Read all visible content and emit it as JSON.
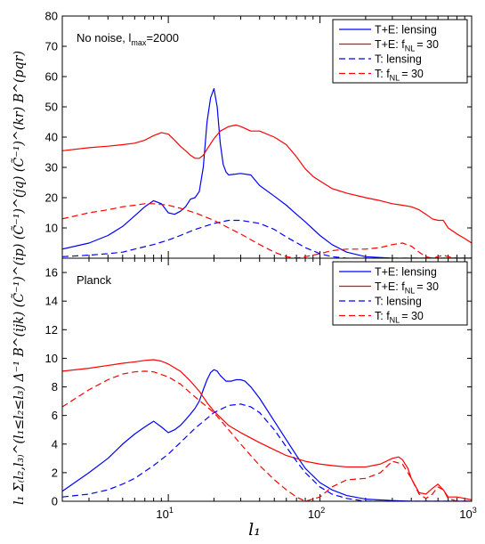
{
  "figure": {
    "ylabel": "l₁ Σ₍l₂,l₃₎^(l₁≤l₂≤l₃) Δ⁻¹ B^(ijk) (C̃⁻¹)^(ip) (C̃⁻¹)^(jq) (C̃⁻¹)^(kr) B^(pqr)",
    "xlabel": "l₁",
    "x_tick_base": "10",
    "x_tick_exps": [
      "1",
      "2",
      "3"
    ]
  },
  "chart_data": [
    {
      "type": "line",
      "annotation_main": "No noise, l",
      "annotation_sub": "max",
      "annotation_rest": "=2000",
      "xscale": "log",
      "xlim": [
        2,
        1000
      ],
      "ylim": [
        0,
        80
      ],
      "yticks": [
        0,
        10,
        20,
        30,
        40,
        50,
        60,
        70,
        80
      ],
      "grid": false,
      "legend_position": "top-right",
      "series": [
        {
          "name": "T+E: lensing",
          "name_sub": "",
          "name_after": "",
          "color": "#0000ff",
          "dash": "solid",
          "x": [
            2,
            3,
            4,
            5,
            6,
            7,
            8,
            9,
            10,
            11,
            12,
            13,
            14,
            15,
            16,
            17,
            18,
            19,
            20,
            21,
            22,
            23,
            24,
            25,
            30,
            35,
            40,
            50,
            60,
            70,
            80,
            100,
            120,
            150,
            200,
            300,
            1000
          ],
          "y": [
            3,
            5,
            7.5,
            10.5,
            14,
            17,
            19,
            18,
            15,
            14.5,
            15.5,
            17,
            19.5,
            20,
            22,
            30,
            45,
            53,
            56,
            50,
            38,
            31,
            28.5,
            27.5,
            28,
            27.5,
            24,
            20.5,
            17.5,
            14.5,
            12,
            7.5,
            4.5,
            2,
            0.5,
            0,
            0
          ]
        },
        {
          "name": "T+E: f",
          "name_sub": "NL",
          "name_after": "= 30",
          "color": "#ff0000",
          "dash": "solid",
          "x": [
            2,
            3,
            4,
            5,
            6,
            7,
            8,
            9,
            10,
            11,
            12,
            13,
            14,
            15,
            16,
            17,
            18,
            20,
            22,
            25,
            28,
            30,
            35,
            40,
            50,
            60,
            70,
            80,
            90,
            100,
            120,
            150,
            200,
            250,
            300,
            350,
            400,
            450,
            500,
            550,
            600,
            650,
            700,
            800,
            900,
            1000
          ],
          "y": [
            35.5,
            36.5,
            37,
            37.5,
            38,
            39,
            40.5,
            41.5,
            41,
            39,
            37,
            35.5,
            34,
            33,
            33,
            34,
            36,
            39.5,
            42,
            43.5,
            44,
            43.5,
            42,
            42,
            40,
            37.5,
            33.5,
            29.5,
            27,
            25.5,
            23,
            21.5,
            20,
            19,
            18,
            17.5,
            17,
            16,
            14.5,
            13,
            12.5,
            12.5,
            10,
            8,
            6.5,
            5
          ]
        },
        {
          "name": "T: lensing",
          "name_sub": "",
          "name_after": "",
          "color": "#0000ff",
          "dash": "dashed",
          "x": [
            2,
            3,
            4,
            5,
            6,
            8,
            10,
            12,
            15,
            20,
            25,
            30,
            40,
            50,
            60,
            80,
            100,
            120,
            150,
            200,
            300,
            1000
          ],
          "y": [
            0.5,
            1,
            1.5,
            2,
            3,
            4.5,
            6,
            7.5,
            9.5,
            11.5,
            12.5,
            12.5,
            11.5,
            9.5,
            7,
            3.5,
            1.5,
            0.5,
            0,
            0,
            0,
            0
          ]
        },
        {
          "name": "T: f",
          "name_sub": "NL",
          "name_after": "= 30",
          "color": "#ff0000",
          "dash": "dashed",
          "x": [
            2,
            3,
            4,
            5,
            6,
            7,
            8,
            10,
            12,
            15,
            20,
            25,
            30,
            40,
            50,
            60,
            70,
            80,
            100,
            120,
            150,
            200,
            250,
            300,
            350,
            400,
            450,
            500,
            550,
            600,
            650,
            700,
            800,
            1000
          ],
          "y": [
            13,
            15,
            16,
            17,
            17.5,
            18,
            18,
            17.5,
            16.5,
            15,
            12.5,
            10,
            8,
            4.5,
            2,
            0.5,
            0,
            0.5,
            1.5,
            2.5,
            3,
            3,
            3.5,
            4.5,
            5,
            4,
            2,
            0.5,
            0,
            0.5,
            1,
            0.5,
            0,
            0
          ]
        }
      ]
    },
    {
      "type": "line",
      "annotation_main": "Planck",
      "annotation_sub": "",
      "annotation_rest": "",
      "xscale": "log",
      "xlim": [
        2,
        1000
      ],
      "ylim": [
        0,
        17
      ],
      "yticks": [
        0,
        2,
        4,
        6,
        8,
        10,
        12,
        14,
        16
      ],
      "grid": false,
      "legend_position": "top-right",
      "series": [
        {
          "name": "T+E: lensing",
          "name_sub": "",
          "name_after": "",
          "color": "#0000ff",
          "dash": "solid",
          "x": [
            2,
            3,
            4,
            5,
            6,
            7,
            8,
            9,
            10,
            11,
            12,
            13,
            14,
            15,
            16,
            17,
            18,
            19,
            20,
            21,
            22,
            24,
            26,
            28,
            30,
            32,
            35,
            40,
            50,
            60,
            70,
            80,
            100,
            120,
            150,
            200,
            300,
            400,
            1000
          ],
          "y": [
            0.7,
            2,
            3,
            4,
            4.7,
            5.2,
            5.6,
            5.2,
            4.8,
            5,
            5.3,
            5.7,
            6.1,
            6.5,
            7,
            7.8,
            8.5,
            9,
            9.2,
            9.1,
            8.8,
            8.4,
            8.4,
            8.5,
            8.5,
            8.4,
            8,
            7.2,
            5.6,
            4.3,
            3.2,
            2.3,
            1.3,
            0.8,
            0.4,
            0.15,
            0.05,
            0,
            0
          ]
        },
        {
          "name": "T+E: f",
          "name_sub": "NL",
          "name_after": "= 30",
          "color": "#ff0000",
          "dash": "solid",
          "x": [
            2,
            3,
            4,
            5,
            6,
            7,
            8,
            9,
            10,
            12,
            14,
            16,
            18,
            20,
            25,
            30,
            40,
            50,
            60,
            80,
            100,
            120,
            150,
            200,
            250,
            300,
            330,
            350,
            380,
            400,
            450,
            500,
            550,
            600,
            650,
            700,
            800,
            900,
            1000
          ],
          "y": [
            9.1,
            9.3,
            9.5,
            9.65,
            9.75,
            9.85,
            9.9,
            9.8,
            9.6,
            9.1,
            8.4,
            7.7,
            6.9,
            6.3,
            5.3,
            4.8,
            4.1,
            3.6,
            3.2,
            2.8,
            2.6,
            2.5,
            2.4,
            2.4,
            2.6,
            3,
            3.1,
            2.9,
            2.3,
            1.6,
            0.6,
            0.5,
            0.9,
            1.2,
            0.8,
            0.3,
            0.3,
            0.2,
            0.1
          ]
        },
        {
          "name": "T: lensing",
          "name_sub": "",
          "name_after": "",
          "color": "#0000ff",
          "dash": "dashed",
          "x": [
            2,
            3,
            4,
            5,
            6,
            8,
            10,
            12,
            15,
            20,
            25,
            30,
            35,
            40,
            50,
            60,
            70,
            80,
            100,
            120,
            150,
            200,
            300,
            1000
          ],
          "y": [
            0.3,
            0.5,
            0.8,
            1.2,
            1.6,
            2.5,
            3.3,
            4.1,
            5.1,
            6.2,
            6.7,
            6.8,
            6.6,
            6.2,
            5,
            3.8,
            2.8,
            2,
            1,
            0.5,
            0.2,
            0,
            0,
            0
          ]
        },
        {
          "name": "T: f",
          "name_sub": "NL",
          "name_after": "= 30",
          "color": "#ff0000",
          "dash": "dashed",
          "x": [
            2,
            3,
            4,
            5,
            6,
            7,
            8,
            10,
            12,
            15,
            20,
            25,
            30,
            40,
            50,
            60,
            70,
            80,
            100,
            120,
            150,
            200,
            250,
            300,
            350,
            400,
            450,
            500,
            550,
            600,
            650,
            700,
            800,
            1000
          ],
          "y": [
            6.6,
            7.8,
            8.5,
            8.9,
            9.05,
            9.1,
            9.05,
            8.7,
            8.2,
            7.3,
            6.2,
            5,
            4,
            2.5,
            1.5,
            0.8,
            0.3,
            0,
            0.3,
            1,
            1.5,
            1.6,
            2,
            2.8,
            2.6,
            1.6,
            0.5,
            0.2,
            0.5,
            1,
            0.8,
            0.2,
            0,
            0
          ]
        }
      ]
    }
  ]
}
